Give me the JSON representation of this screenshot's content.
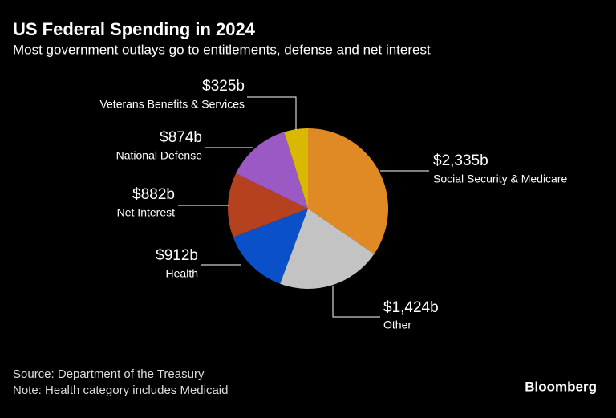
{
  "chart_data": {
    "type": "pie",
    "title": "US Federal Spending in 2024",
    "subtitle": "Most government outlays go to entitlements, defense and net interest",
    "categories": [
      "Social Security & Medicare",
      "Other",
      "Health",
      "Net Interest",
      "National Defense",
      "Veterans Benefits & Services"
    ],
    "values": [
      2335,
      1424,
      912,
      882,
      874,
      325
    ],
    "value_labels": [
      "$2,335b",
      "$1,424b",
      "$912b",
      "$882b",
      "$874b",
      "$325b"
    ],
    "colors": [
      "#e08a26",
      "#c3c3c3",
      "#0a50c8",
      "#b5411e",
      "#9b59c4",
      "#d8b800"
    ],
    "source": "Source: Department of the Treasury",
    "note": "Note: Health category includes Medicaid",
    "brand": "Bloomberg"
  }
}
